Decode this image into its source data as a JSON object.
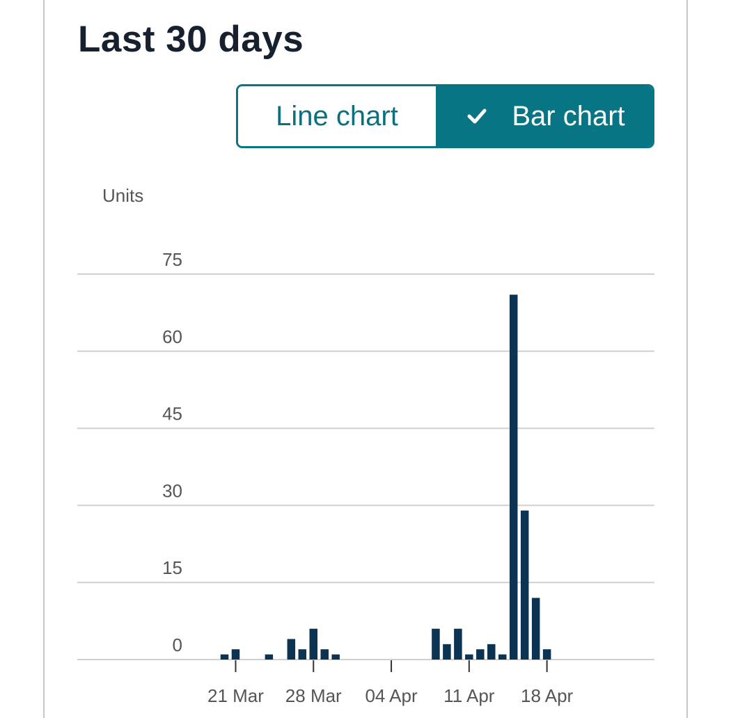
{
  "page": {
    "title": "Last 30 days"
  },
  "toggle": {
    "line_label": "Line chart",
    "bar_label": "Bar chart",
    "selected": "bar"
  },
  "icons": {
    "selected_check": "check-icon"
  },
  "colors": {
    "accent": "#087585",
    "bar": "#0c3352",
    "title": "#16202e",
    "gridline": "#d0d0d0",
    "tick_label": "#555555"
  },
  "chart_data": {
    "type": "bar",
    "ylabel": "Units",
    "ylim": [
      0,
      75
    ],
    "yticks": [
      0,
      15,
      30,
      45,
      60,
      75
    ],
    "yticklabels": [
      "0",
      "15",
      "30",
      "45",
      "60",
      "75"
    ],
    "grid": true,
    "x_tick_labels": [
      "21 Mar",
      "28 Mar",
      "04 Apr",
      "11 Apr",
      "18 Apr"
    ],
    "x_tick_dates": [
      "2023-03-21",
      "2023-03-28",
      "2023-04-04",
      "2023-04-11",
      "2023-04-18"
    ],
    "x_start": "2023-03-20",
    "x_end": "2023-04-18",
    "x": [
      "2023-03-20",
      "2023-03-21",
      "2023-03-22",
      "2023-03-23",
      "2023-03-24",
      "2023-03-25",
      "2023-03-26",
      "2023-03-27",
      "2023-03-28",
      "2023-03-29",
      "2023-03-30",
      "2023-03-31",
      "2023-04-01",
      "2023-04-02",
      "2023-04-03",
      "2023-04-04",
      "2023-04-05",
      "2023-04-06",
      "2023-04-07",
      "2023-04-08",
      "2023-04-09",
      "2023-04-10",
      "2023-04-11",
      "2023-04-12",
      "2023-04-13",
      "2023-04-14",
      "2023-04-15",
      "2023-04-16",
      "2023-04-17",
      "2023-04-18"
    ],
    "values": [
      1,
      2,
      0,
      0,
      1,
      0,
      4,
      2,
      6,
      2,
      1,
      0,
      0,
      0,
      0,
      0,
      0,
      0,
      0,
      6,
      3,
      6,
      1,
      2,
      3,
      1,
      71,
      29,
      12,
      2
    ]
  }
}
